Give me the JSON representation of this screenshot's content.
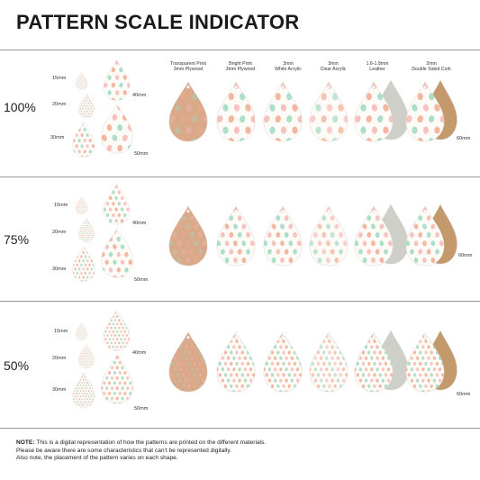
{
  "title": "PATTERN SCALE INDICATOR",
  "columns": [
    {
      "line1": "Transparent Print",
      "line2": "3mm Plywood"
    },
    {
      "line1": "Bright Print",
      "line2": "3mm Plywood"
    },
    {
      "line1": "3mm",
      "line2": "White Acrylic"
    },
    {
      "line1": "3mm",
      "line2": "Clear Acrylic"
    },
    {
      "line1": "1.6-1.8mm",
      "line2": "Leather"
    },
    {
      "line1": "2mm",
      "line2": "Double Sided Cork"
    }
  ],
  "rows": [
    {
      "scale": "100%",
      "labels": [
        "15mm",
        "20mm",
        "30mm",
        "40mm",
        "50mm",
        "60mm"
      ]
    },
    {
      "scale": "75%",
      "labels": [
        "15mm",
        "20mm",
        "30mm",
        "40mm",
        "50mm",
        "60mm"
      ]
    },
    {
      "scale": "50%",
      "labels": [
        "15mm",
        "20mm",
        "30mm",
        "40mm",
        "50mm",
        "60mm"
      ]
    }
  ],
  "note": {
    "label": "NOTE:",
    "line1": " This is a digital representation of how the patterns are printed on the different materials.",
    "line2": "Please be aware there are some characteristics that can't be represented digitally.",
    "line3": "Also note, the placement of the pattern varies on each shape."
  },
  "colors": {
    "plywood": "#d9a98a",
    "white": "#fdfbf8",
    "leather": "#cfcfc9",
    "cork": "#c49a6c",
    "egg_peach": "#f3a98f",
    "egg_mint": "#9fd8c0",
    "egg_pink": "#f7b9b4",
    "rule": "#9a9a9a"
  }
}
